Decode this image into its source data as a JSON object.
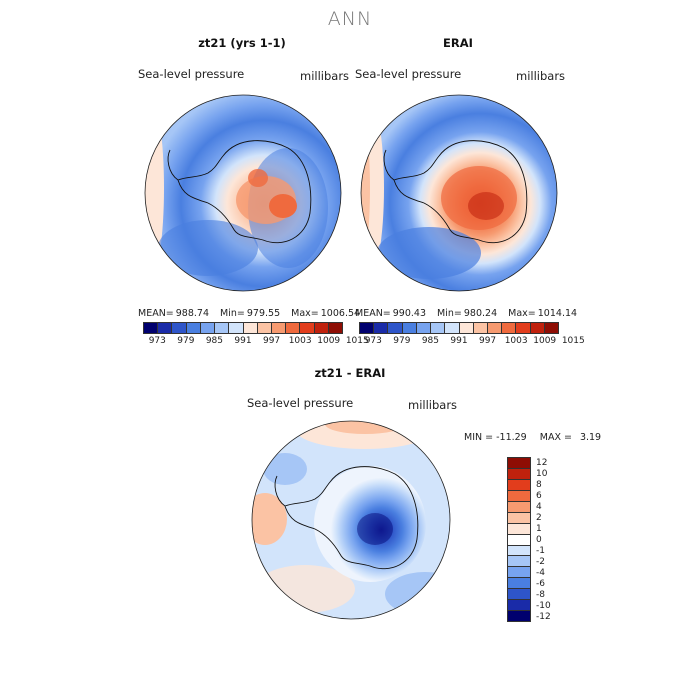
{
  "title": "ANN",
  "panels": [
    {
      "title": "zt21 (yrs 1-1)",
      "field": "Sea-level pressure",
      "units": "millibars",
      "mean_label": "MEAN=",
      "mean": "988.74",
      "min_label": "Min=",
      "min": "979.55",
      "max_label": "Max=",
      "max": "1006.54"
    },
    {
      "title": "ERAI",
      "field": "Sea-level pressure",
      "units": "millibars",
      "mean_label": "MEAN=",
      "mean": "990.43",
      "min_label": "Min=",
      "min": "980.24",
      "max_label": "Max=",
      "max": "1014.14"
    }
  ],
  "abs_colorbar": {
    "colors": [
      "#00006e",
      "#1a2ba8",
      "#2e55c9",
      "#4a7fe0",
      "#77a3ef",
      "#a6c6f6",
      "#d2e4fb",
      "#fde6d8",
      "#fbc3a4",
      "#f69a70",
      "#ef6a3e",
      "#e23d1c",
      "#c0210d",
      "#8e0d04"
    ],
    "ticks": [
      "973",
      "979",
      "985",
      "991",
      "997",
      "1003",
      "1009",
      "1015"
    ]
  },
  "diff": {
    "title": "zt21 - ERAI",
    "field": "Sea-level pressure",
    "units": "millibars",
    "min_label": "MIN =",
    "min": "-11.29",
    "max_label": "MAX =",
    "max": "3.19",
    "colorbar": {
      "colors": [
        "#8e0d04",
        "#c0210d",
        "#e23d1c",
        "#ef6a3e",
        "#f69a70",
        "#fbc3a4",
        "#fde6d8",
        "#ffffff",
        "#d2e4fb",
        "#a6c6f6",
        "#77a3ef",
        "#4a7fe0",
        "#2e55c9",
        "#1a2ba8",
        "#00006e"
      ],
      "ticks": [
        "12",
        "10",
        "8",
        "6",
        "4",
        "2",
        "1",
        "0",
        "-1",
        "-2",
        "-4",
        "-6",
        "-8",
        "-10",
        "-12"
      ]
    }
  }
}
